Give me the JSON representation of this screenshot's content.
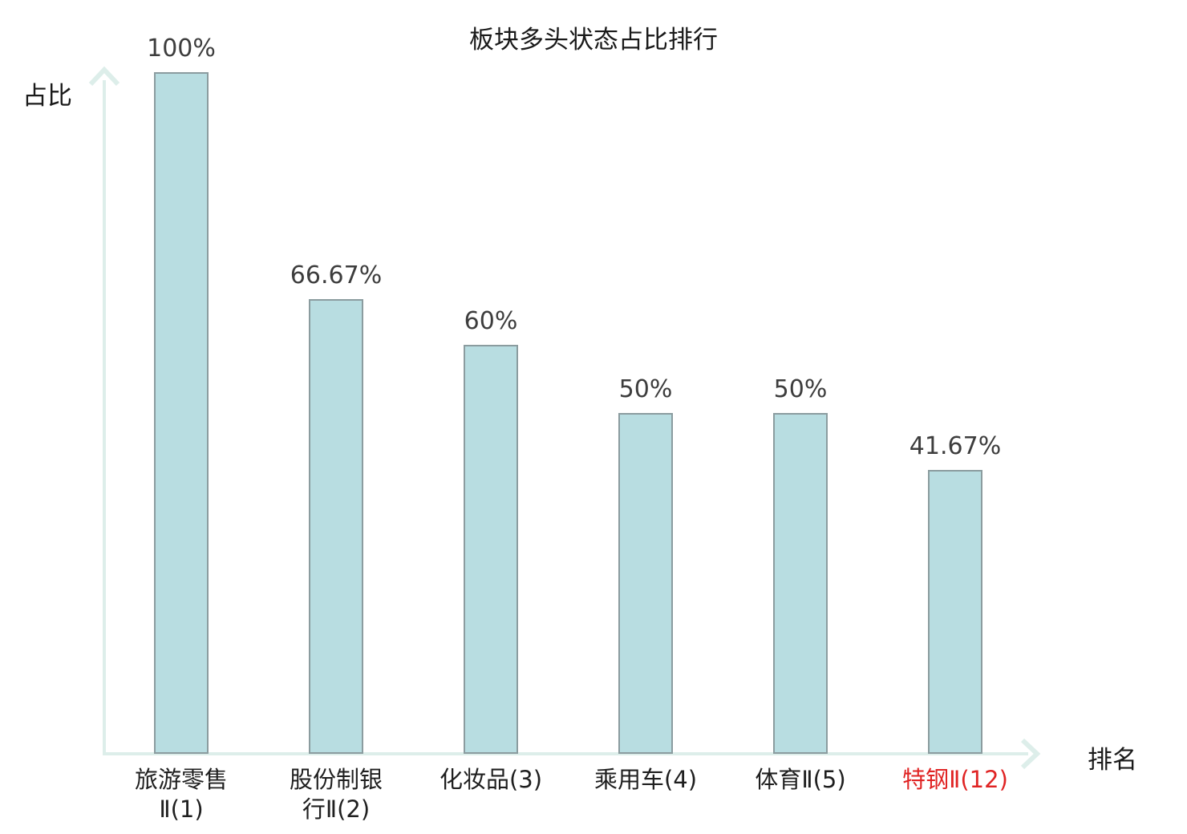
{
  "title": "板块多头状态占比排行",
  "y_axis_label": "占比",
  "x_axis_label": "排名",
  "colors": {
    "bar_fill": "#b8dde1",
    "bar_border": "#8b9c9f",
    "axis": "#ddeeea",
    "title_text": "#1a1a1a",
    "value_text": "#3d3d3d",
    "category_text": "#1f1f1f",
    "highlight_text": "#e02424"
  },
  "chart_data": {
    "type": "bar",
    "title": "板块多头状态占比排行",
    "xlabel": "排名",
    "ylabel": "占比",
    "ylim": [
      0,
      100
    ],
    "grid": false,
    "categories": [
      "旅游零售\nⅡ(1)",
      "股份制银\n行Ⅱ(2)",
      "化妆品(3)",
      "乘用车(4)",
      "体育Ⅱ(5)",
      "特钢Ⅱ(12)"
    ],
    "values": [
      100,
      66.67,
      60,
      50,
      50,
      41.67
    ],
    "value_labels": [
      "100%",
      "66.67%",
      "60%",
      "50%",
      "50%",
      "41.67%"
    ],
    "highlight_index": 5
  }
}
